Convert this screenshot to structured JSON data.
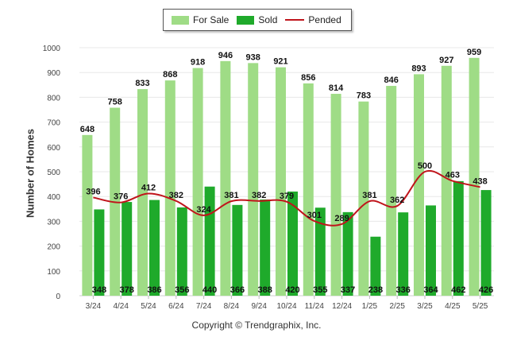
{
  "legend": {
    "for_sale": "For Sale",
    "sold": "Sold",
    "pended": "Pended"
  },
  "colors": {
    "for_sale": "#9fdc86",
    "sold": "#1faa2b",
    "pended": "#c0141b",
    "grid": "#e8e8e8"
  },
  "footer": "Copyright © Trendgraphix, Inc.",
  "chart_data": {
    "type": "bar",
    "categories": [
      "3/24",
      "4/24",
      "5/24",
      "6/24",
      "7/24",
      "8/24",
      "9/24",
      "10/24",
      "11/24",
      "12/24",
      "1/25",
      "2/25",
      "3/25",
      "4/25",
      "5/25"
    ],
    "series": [
      {
        "name": "For Sale",
        "type": "bar",
        "values": [
          648,
          758,
          833,
          868,
          918,
          946,
          938,
          921,
          856,
          814,
          783,
          846,
          893,
          927,
          959
        ]
      },
      {
        "name": "Sold",
        "type": "bar",
        "values": [
          348,
          378,
          386,
          356,
          440,
          366,
          388,
          420,
          355,
          337,
          238,
          336,
          364,
          462,
          426
        ]
      },
      {
        "name": "Pended",
        "type": "line",
        "values": [
          396,
          376,
          412,
          382,
          324,
          381,
          382,
          379,
          301,
          289,
          381,
          362,
          500,
          463,
          438
        ]
      }
    ],
    "ylabel": "Number of Homes",
    "xlabel": "",
    "ylim": [
      0,
      1000
    ],
    "yticks": [
      0,
      100,
      200,
      300,
      400,
      500,
      600,
      700,
      800,
      900,
      1000
    ],
    "grid": true,
    "legend_position": "top-center"
  }
}
